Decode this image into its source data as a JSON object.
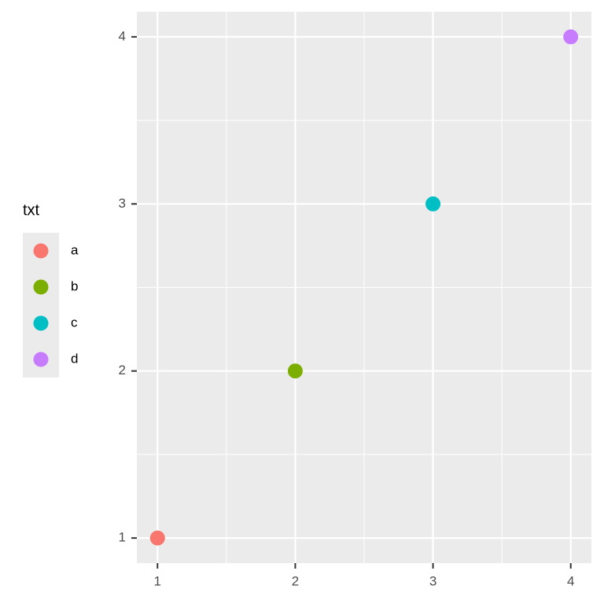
{
  "chart_data": {
    "type": "scatter",
    "legend_title": "txt",
    "legend_position": "left",
    "series": [
      {
        "name": "a",
        "color": "#F8766D",
        "x": [
          1
        ],
        "values": [
          1
        ]
      },
      {
        "name": "b",
        "color": "#7CAE00",
        "x": [
          2
        ],
        "values": [
          2
        ]
      },
      {
        "name": "c",
        "color": "#00BFC4",
        "x": [
          3
        ],
        "values": [
          3
        ]
      },
      {
        "name": "d",
        "color": "#C77CFF",
        "x": [
          4
        ],
        "values": [
          4
        ]
      }
    ],
    "xlim": [
      0.85,
      4.15
    ],
    "xticks": [
      1,
      2,
      3,
      4
    ],
    "ylim": [
      0.85,
      4.15
    ],
    "yticks": [
      1,
      2,
      3,
      4
    ],
    "grid": true
  }
}
